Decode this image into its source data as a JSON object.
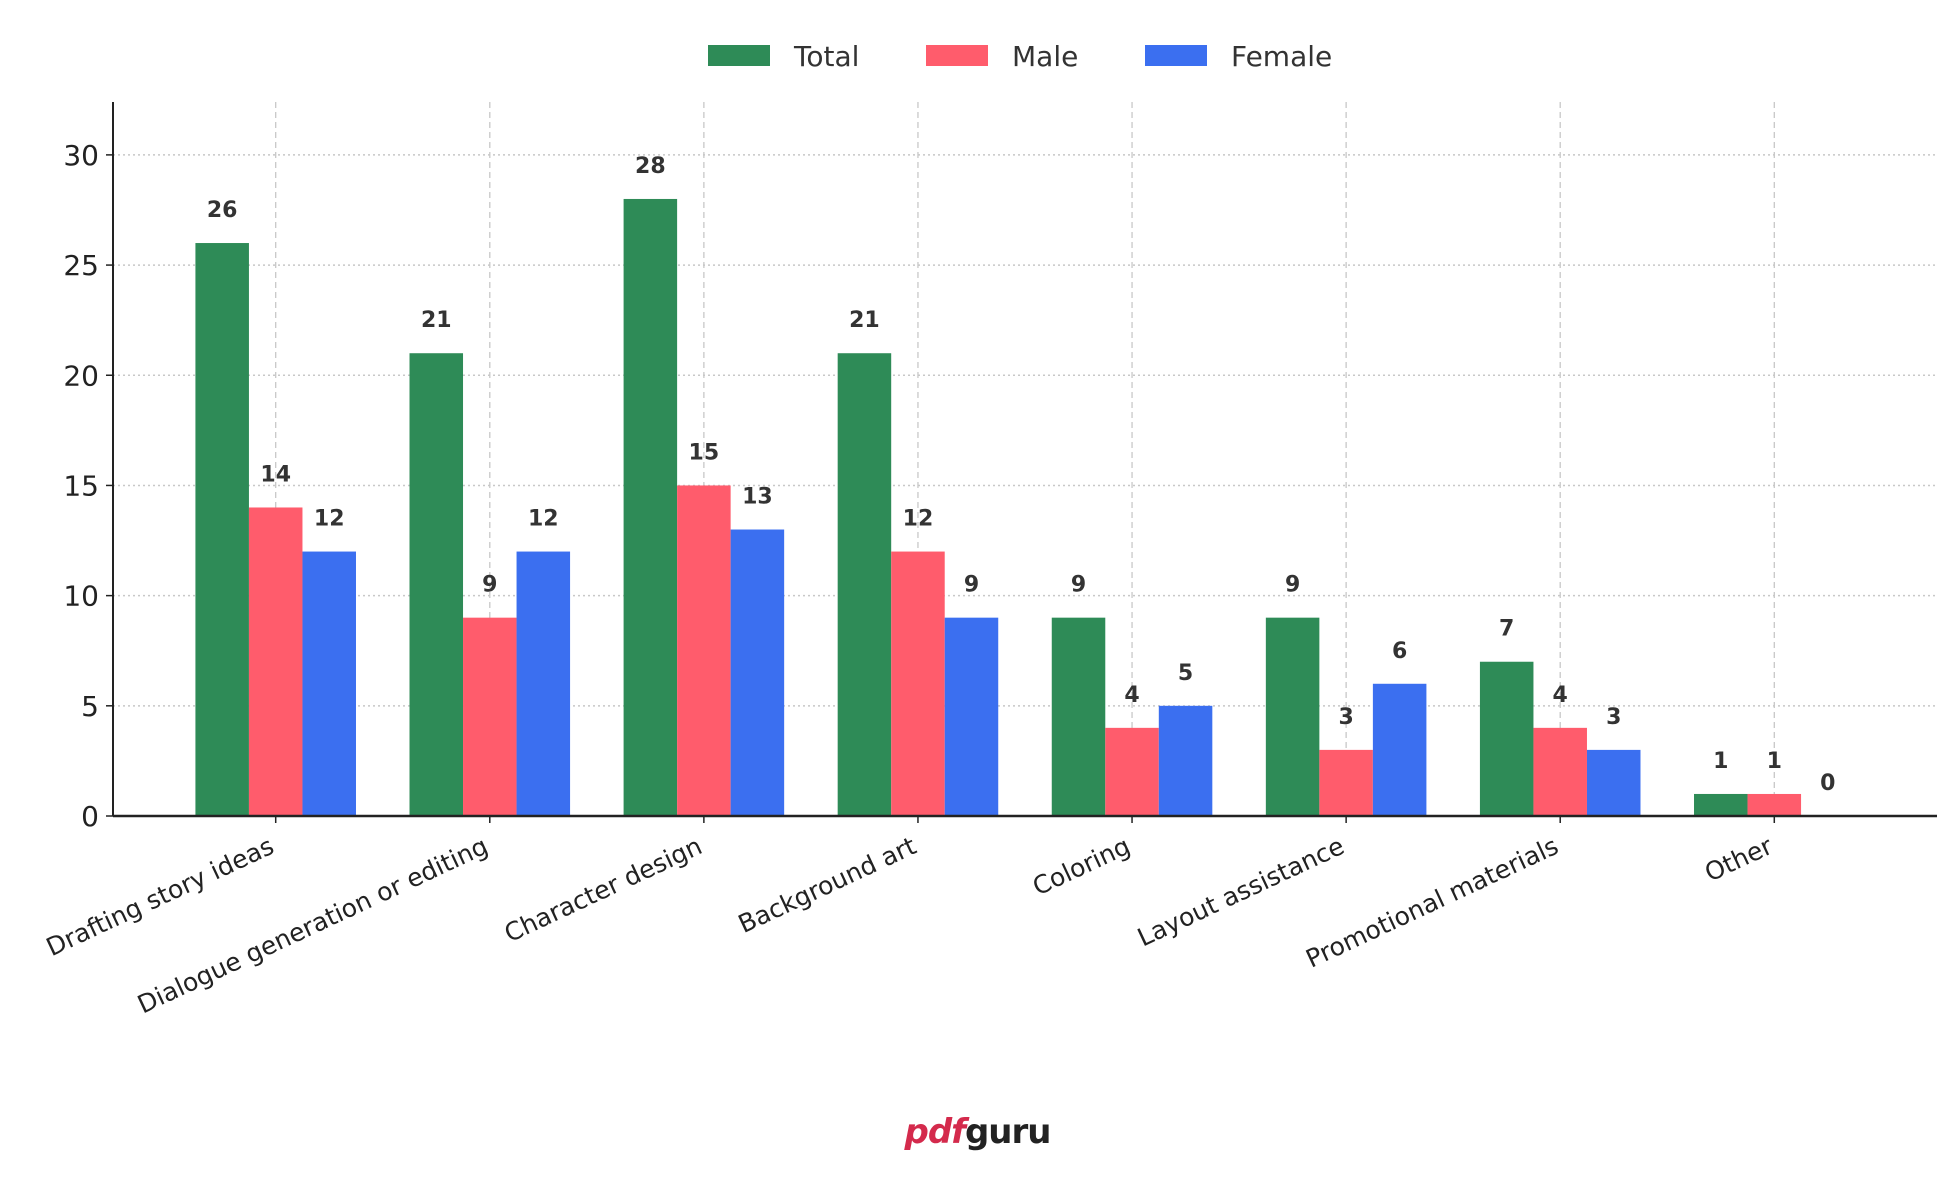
{
  "chart_data": {
    "type": "bar",
    "categories": [
      "Drafting story ideas",
      "Dialogue generation or editing",
      "Character design",
      "Background art",
      "Coloring",
      "Layout assistance",
      "Promotional materials",
      "Other"
    ],
    "series": [
      {
        "name": "Total",
        "color": "#2e8b57",
        "values": [
          26,
          21,
          28,
          21,
          9,
          9,
          7,
          1
        ]
      },
      {
        "name": "Male",
        "color": "#ff5c6c",
        "values": [
          14,
          9,
          15,
          12,
          4,
          3,
          4,
          1
        ]
      },
      {
        "name": "Female",
        "color": "#3b6ff0",
        "values": [
          12,
          12,
          13,
          9,
          5,
          6,
          3,
          0
        ]
      }
    ],
    "ylim": [
      0,
      32.4
    ],
    "yticks": [
      0,
      5,
      10,
      15,
      20,
      25,
      30
    ],
    "grid": true,
    "legend": "top-center",
    "data_labels": true
  },
  "watermark": {
    "part1": "pdf",
    "part2": "guru"
  }
}
